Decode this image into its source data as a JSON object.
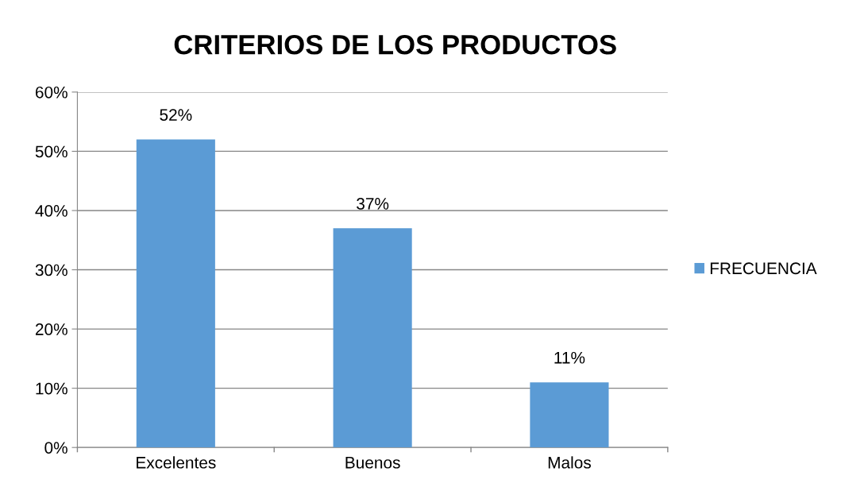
{
  "chart_data": {
    "type": "bar",
    "title": "CRITERIOS DE LOS PRODUCTOS",
    "categories": [
      "Excelentes",
      "Buenos",
      "Malos"
    ],
    "series": [
      {
        "name": "FRECUENCIA",
        "color": "#5b9bd5",
        "values": [
          52,
          37,
          11
        ],
        "value_labels": [
          "52%",
          "37%",
          "11%"
        ]
      }
    ],
    "ylim": [
      0,
      60
    ],
    "yticks": [
      {
        "value": 0,
        "label": "0%"
      },
      {
        "value": 10,
        "label": "10%"
      },
      {
        "value": 20,
        "label": "20%"
      },
      {
        "value": 30,
        "label": "30%"
      },
      {
        "value": 40,
        "label": "40%"
      },
      {
        "value": 50,
        "label": "50%"
      },
      {
        "value": 60,
        "label": "60%"
      }
    ],
    "grid": "y",
    "legend": "right"
  }
}
